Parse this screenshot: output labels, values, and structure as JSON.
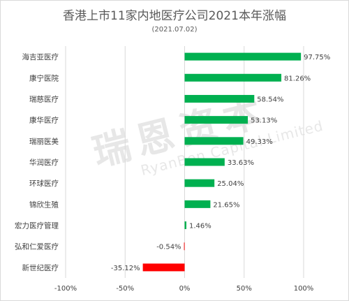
{
  "chart_data": {
    "type": "bar",
    "orientation": "horizontal",
    "title": "香港上市11家内地医疗公司2021本年涨幅",
    "subtitle": "(2021.07.02)",
    "categories": [
      "海吉亚医疗",
      "康宁医院",
      "瑞慈医疗",
      "康华医疗",
      "瑞丽医美",
      "华润医疗",
      "环球医疗",
      "锦欣生殖",
      "宏力医疗管理",
      "弘和仁爱医疗",
      "新世纪医疗"
    ],
    "values": [
      97.75,
      81.26,
      58.54,
      53.13,
      49.33,
      33.63,
      25.04,
      21.65,
      1.46,
      -0.54,
      -35.12
    ],
    "data_labels": [
      "97.75%",
      "81.26%",
      "58.54%",
      "53.13%",
      "49.33%",
      "33.63%",
      "25.04%",
      "21.65%",
      "1.46%",
      "-0.54%",
      "-35.12%"
    ],
    "xlim": [
      -100,
      100
    ],
    "x_ticks": [
      "-100%",
      "-50%",
      "0%",
      "50%",
      "100%"
    ],
    "grid": true,
    "colors": {
      "positive": "#00b050",
      "negative": "#ff0000",
      "grid": "#d9d9d9",
      "text": "#404040"
    }
  },
  "watermark": {
    "text_cn": "瑞恩资本",
    "text_en": "RyanBen Capital Limited"
  }
}
